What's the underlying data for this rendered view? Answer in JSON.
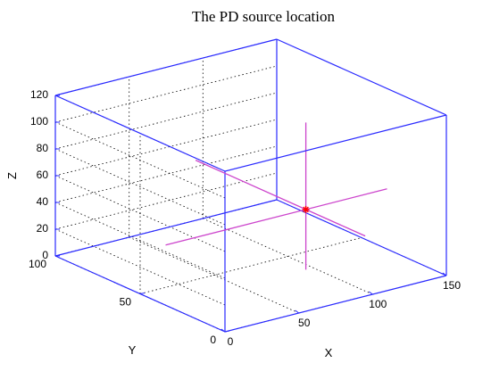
{
  "chart_data": {
    "type": "line3d",
    "title": "The PD source location",
    "xlabel": "X",
    "ylabel": "Y",
    "zlabel": "Z",
    "xlim": [
      0,
      150
    ],
    "ylim": [
      0,
      100
    ],
    "zlim": [
      0,
      120
    ],
    "x_ticks": [
      "0",
      "50",
      "100",
      "150"
    ],
    "y_ticks": [
      "0",
      "50",
      "100"
    ],
    "z_ticks": [
      "0",
      "20",
      "40",
      "60",
      "80",
      "100",
      "120"
    ],
    "grid": true,
    "box": true,
    "colors": {
      "box": "#2a2aff",
      "grid": "#000000",
      "lines": "#cc44cc",
      "marker": "#ff0000"
    },
    "series": [
      {
        "points": [
          [
            0,
            35,
            45
          ],
          [
            150,
            35,
            45
          ]
        ]
      },
      {
        "points": [
          [
            95,
            0,
            45
          ],
          [
            95,
            100,
            45
          ]
        ]
      },
      {
        "points": [
          [
            95,
            35,
            0
          ],
          [
            95,
            35,
            110
          ]
        ]
      }
    ],
    "marker": {
      "symbol": "*",
      "point": [
        95,
        35,
        45
      ]
    }
  }
}
